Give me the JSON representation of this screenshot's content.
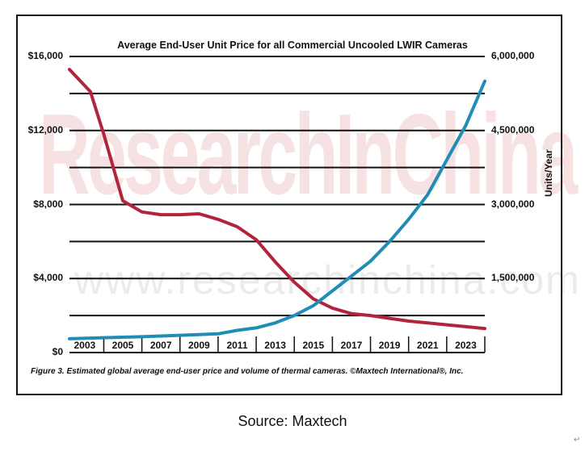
{
  "chart_data": {
    "type": "line",
    "title": "Average End-User Unit Price for all Commercial Uncooled LWIR Cameras",
    "ylabel": "",
    "y2label": "Units/Year",
    "x_ticks": [
      "2003",
      "2005",
      "2007",
      "2009",
      "2011",
      "2013",
      "2015",
      "2017",
      "2019",
      "2021",
      "2023"
    ],
    "xlim": [
      2002.2,
      2024.0
    ],
    "y_ticks": [
      "$0",
      "$4,000",
      "$8,000",
      "$12,000",
      "$16,000"
    ],
    "ylim": [
      0,
      16000
    ],
    "y2_ticks": [
      "1,500,000",
      "3,000,000",
      "4,500,000",
      "6,000,000"
    ],
    "y2lim": [
      0,
      6000000
    ],
    "grid": true,
    "series": [
      {
        "axis": "left",
        "color": "#b2243b",
        "points": [
          [
            2002.2,
            15300
          ],
          [
            2003.3,
            14100
          ],
          [
            2004,
            11800
          ],
          [
            2005,
            8200
          ],
          [
            2006,
            7600
          ],
          [
            2007,
            7450
          ],
          [
            2008,
            7450
          ],
          [
            2009,
            7500
          ],
          [
            2010,
            7200
          ],
          [
            2011,
            6800
          ],
          [
            2012,
            6100
          ],
          [
            2013,
            4900
          ],
          [
            2014,
            3800
          ],
          [
            2015,
            2900
          ],
          [
            2016,
            2400
          ],
          [
            2017,
            2100
          ],
          [
            2018,
            2000
          ],
          [
            2019,
            1850
          ],
          [
            2020,
            1700
          ],
          [
            2021,
            1600
          ],
          [
            2022,
            1500
          ],
          [
            2023,
            1400
          ],
          [
            2024.0,
            1300
          ]
        ]
      },
      {
        "axis": "right",
        "color": "#1f8db5",
        "points": [
          [
            2002.2,
            280000
          ],
          [
            2004,
            300000
          ],
          [
            2006,
            320000
          ],
          [
            2008,
            350000
          ],
          [
            2010,
            380000
          ],
          [
            2011,
            450000
          ],
          [
            2012,
            500000
          ],
          [
            2013,
            600000
          ],
          [
            2014,
            750000
          ],
          [
            2015,
            950000
          ],
          [
            2016,
            1250000
          ],
          [
            2017,
            1550000
          ],
          [
            2018,
            1850000
          ],
          [
            2019,
            2250000
          ],
          [
            2020,
            2700000
          ],
          [
            2021,
            3200000
          ],
          [
            2022,
            3900000
          ],
          [
            2023,
            4600000
          ],
          [
            2024.0,
            5500000
          ]
        ]
      }
    ]
  },
  "watermark": {
    "main": "ResearchInChina",
    "url": "www.researchinchina.com"
  },
  "caption": "Figure 3. Estimated global average end-user price and volume of thermal cameras. ©Maxtech International®, Inc.",
  "source": "Source: Maxtech",
  "corner_mark": "↵"
}
